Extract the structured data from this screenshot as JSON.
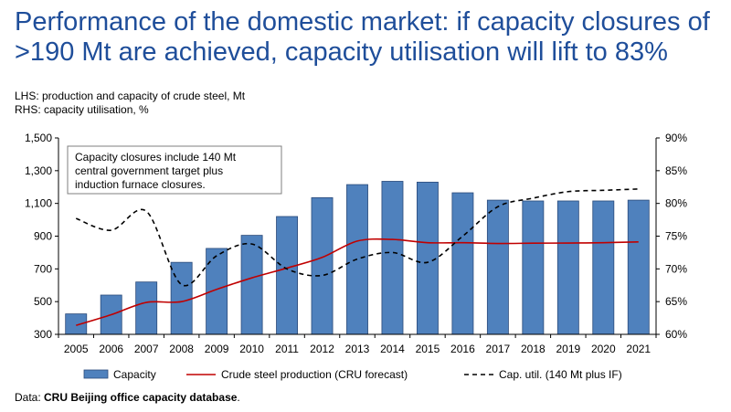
{
  "header": {
    "title": "Performance of the domestic market: if capacity closures of >190 Mt are achieved, capacity utilisation will lift to 83%",
    "lhs": "LHS: production and capacity of crude steel, Mt",
    "rhs": "RHS: capacity utilisation, %"
  },
  "annotation": [
    "Capacity closures include 140 Mt",
    "central government target plus",
    "induction furnace closures."
  ],
  "source": {
    "prefix": "Data: ",
    "name": "CRU Beijing office capacity database",
    "suffix": "."
  },
  "colors": {
    "bar": "#4f81bd",
    "bar_edge": "#2a4a7a",
    "production": "#c00000",
    "utilisation": "#000000",
    "title": "#1f4e9a"
  },
  "chart_data": {
    "type": "bar",
    "categories": [
      "2005",
      "2006",
      "2007",
      "2008",
      "2009",
      "2010",
      "2011",
      "2012",
      "2013",
      "2014",
      "2015",
      "2016",
      "2017",
      "2018",
      "2019",
      "2020",
      "2021"
    ],
    "series": [
      {
        "name": "Capacity",
        "type": "bar",
        "axis": "left",
        "values": [
          425,
          540,
          620,
          740,
          825,
          905,
          1020,
          1135,
          1215,
          1235,
          1230,
          1165,
          1120,
          1115,
          1115,
          1115,
          1120
        ]
      },
      {
        "name": "Crude steel production (CRU forecast)",
        "type": "line",
        "axis": "left",
        "values": [
          355,
          420,
          495,
          500,
          575,
          645,
          705,
          770,
          870,
          880,
          860,
          860,
          855,
          857,
          858,
          860,
          865
        ]
      },
      {
        "name": "Cap. util. (140 Mt plus IF)",
        "type": "line",
        "dash": true,
        "axis": "right",
        "values": [
          77.7,
          75.9,
          78.8,
          67.6,
          72.0,
          73.8,
          70.0,
          69.0,
          71.5,
          72.5,
          71.0,
          75.0,
          79.5,
          80.8,
          81.8,
          82.0,
          82.2
        ]
      }
    ],
    "y_left": {
      "min": 300,
      "max": 1500,
      "ticks": [
        300,
        500,
        700,
        900,
        "1,100",
        "1,300",
        "1,500"
      ],
      "tick_values": [
        300,
        500,
        700,
        900,
        1100,
        1300,
        1500
      ]
    },
    "y_right": {
      "min": 60,
      "max": 90,
      "ticks": [
        "60%",
        "65%",
        "70%",
        "75%",
        "80%",
        "85%",
        "90%"
      ]
    },
    "grid": false,
    "legend": "bottom"
  }
}
